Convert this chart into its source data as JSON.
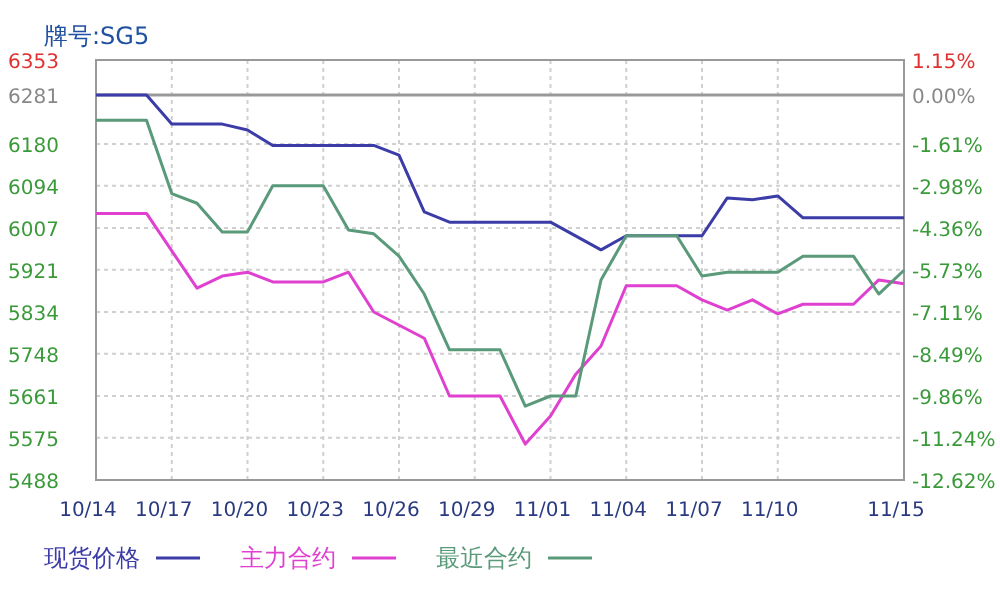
{
  "chart_data": {
    "type": "line",
    "subtitle": "牌号:SG5",
    "xlim": [
      "--10-14",
      "--11-15"
    ],
    "xticks": [
      {
        "value": "--10-14",
        "label": "10/14"
      },
      {
        "value": "--10-17",
        "label": "10/17"
      },
      {
        "value": "--10-20",
        "label": "10/20"
      },
      {
        "value": "--10-23",
        "label": "10/23"
      },
      {
        "value": "--10-26",
        "label": "10/26"
      },
      {
        "value": "--10-29",
        "label": "10/29"
      },
      {
        "value": "--11-01",
        "label": "11/01"
      },
      {
        "value": "--11-04",
        "label": "11/04"
      },
      {
        "value": "--11-07",
        "label": "11/07"
      },
      {
        "value": "--11-10",
        "label": "11/10"
      },
      {
        "value": "--11-15",
        "label": "11/15"
      }
    ],
    "ylim": [
      5488,
      6353
    ],
    "yticks": [
      5488,
      5575,
      5661,
      5748,
      5834,
      5921,
      6007,
      6094,
      6180,
      6281,
      6353
    ],
    "y2lim": [
      -12.62,
      1.15
    ],
    "y2ticks": [
      {
        "value": -12.62,
        "label": "-12.62%"
      },
      {
        "value": -11.24,
        "label": "-11.24%"
      },
      {
        "value": -9.86,
        "label": "-9.86%"
      },
      {
        "value": -8.49,
        "label": "-8.49%"
      },
      {
        "value": -7.11,
        "label": "-7.11%"
      },
      {
        "value": -5.73,
        "label": "-5.73%"
      },
      {
        "value": -4.36,
        "label": "-4.36%"
      },
      {
        "value": -2.98,
        "label": "-2.98%"
      },
      {
        "value": -1.61,
        "label": "-1.61%"
      },
      {
        "value": 0,
        "label": "0.00%"
      },
      {
        "value": 1.15,
        "label": "1.15%"
      }
    ],
    "ref_lines": [
      {
        "axis": "y",
        "value": 6281,
        "color": "#999999"
      }
    ],
    "grid": true,
    "legend": "bottom",
    "marker": "none",
    "line_style": "solid",
    "series": [
      {
        "name": "现货价格",
        "color": "#3c3ca8",
        "x": [
          "--10-14",
          "--10-16",
          "--10-17",
          "--10-19",
          "--10-20",
          "--10-21",
          "--10-25",
          "--10-26",
          "--10-27",
          "--10-28",
          "--11-01",
          "--11-03",
          "--11-04",
          "--11-07",
          "--11-08",
          "--11-09",
          "--11-10",
          "--11-11",
          "--11-15"
        ],
        "values": [
          6281,
          6281,
          6221,
          6221,
          6209,
          6177,
          6177,
          6157,
          6040,
          6019,
          6019,
          5962,
          5991,
          5991,
          6069,
          6065,
          6073,
          6028,
          6028
        ]
      },
      {
        "name": "主力合约",
        "color": "#e040d0",
        "x": [
          "--10-14",
          "--10-16",
          "--10-18",
          "--10-19",
          "--10-20",
          "--10-21",
          "--10-23",
          "--10-24",
          "--10-25",
          "--10-27",
          "--10-28",
          "--10-30",
          "--10-31",
          "--11-01",
          "--11-02",
          "--11-03",
          "--11-04",
          "--11-06",
          "--11-07",
          "--11-08",
          "--11-09",
          "--11-10",
          "--11-11",
          "--11-13",
          "--11-14",
          "--11-15"
        ],
        "values": [
          6037,
          6037,
          5883,
          5908,
          5916,
          5896,
          5896,
          5916,
          5834,
          5780,
          5661,
          5661,
          5562,
          5620,
          5706,
          5764,
          5888,
          5888,
          5859,
          5838,
          5859,
          5830,
          5850,
          5850,
          5900,
          5892
        ]
      },
      {
        "name": "最近合约",
        "color": "#5a9a7a",
        "x": [
          "--10-14",
          "--10-16",
          "--10-17",
          "--10-18",
          "--10-19",
          "--10-20",
          "--10-21",
          "--10-23",
          "--10-24",
          "--10-25",
          "--10-26",
          "--10-27",
          "--10-28",
          "--10-30",
          "--10-31",
          "--11-01",
          "--11-02",
          "--11-03",
          "--11-04",
          "--11-06",
          "--11-07",
          "--11-08",
          "--11-10",
          "--11-11",
          "--11-13",
          "--11-14",
          "--11-15"
        ],
        "values": [
          6229,
          6229,
          6078,
          6058,
          5999,
          5999,
          6094,
          6094,
          6003,
          5995,
          5949,
          5871,
          5756,
          5756,
          5640,
          5661,
          5661,
          5900,
          5991,
          5991,
          5908,
          5916,
          5916,
          5949,
          5949,
          5871,
          5920
        ]
      }
    ]
  }
}
